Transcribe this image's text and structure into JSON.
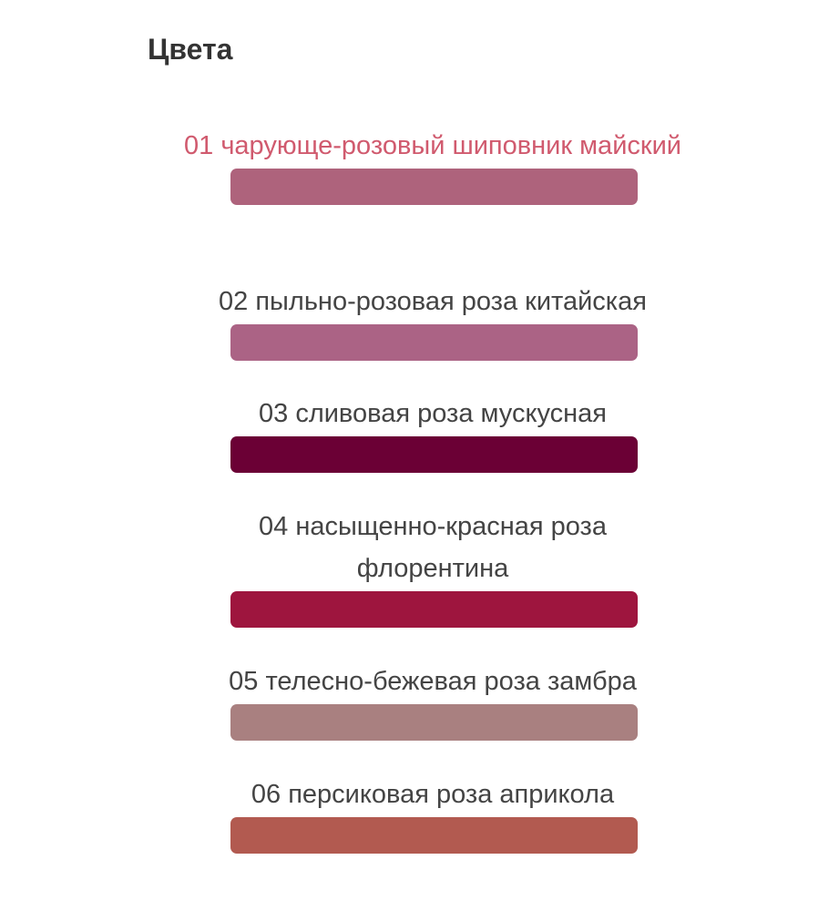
{
  "title": "Цвета",
  "colors": [
    {
      "label": "01 чарующе-розовый шиповник майский",
      "hex": "#ae637c",
      "selected": true
    },
    {
      "label": "02 пыльно-розовая роза китайская",
      "hex": "#ab6385",
      "selected": false
    },
    {
      "label": "03 сливовая роза мускусная",
      "hex": "#6b0035",
      "selected": false
    },
    {
      "label": "04 насыщенно-красная роза флорентина",
      "hex": "#9e153e",
      "selected": false
    },
    {
      "label": "05 телесно-бежевая роза замбра",
      "hex": "#a98080",
      "selected": false
    },
    {
      "label": "06 персиковая роза априкола",
      "hex": "#b25a50",
      "selected": false
    }
  ]
}
